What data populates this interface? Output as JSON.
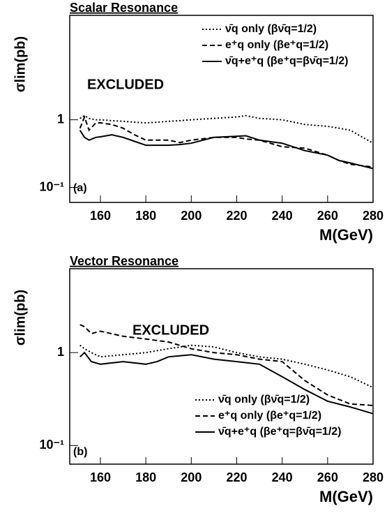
{
  "chart_data": [
    {
      "type": "line",
      "title": "Scalar Resonance",
      "y_label": "σlim(pb)",
      "x_label": "M(GeV)",
      "annotation": "EXCLUDED",
      "panel_label": "(a)",
      "log_y": true,
      "legend_position": "upper right",
      "xlim": [
        146.5,
        280
      ],
      "xticks": [
        160,
        180,
        200,
        220,
        240,
        260,
        280
      ],
      "ylim": [
        0.06,
        35
      ],
      "yticks": [
        {
          "value": 0.1,
          "label": "10⁻¹"
        },
        1
      ],
      "x": [
        151,
        153,
        155,
        158,
        160,
        165,
        170,
        175,
        180,
        185,
        190,
        195,
        200,
        210,
        220,
        224,
        230,
        240,
        250,
        260,
        265,
        270,
        280
      ],
      "series": [
        {
          "name": "ν̄q only (βν̄q=1/2)",
          "color": "#000000",
          "style": "dotted",
          "values": [
            1.05,
            1.15,
            1.05,
            1.0,
            1.0,
            0.97,
            0.95,
            0.92,
            0.9,
            0.92,
            0.95,
            0.97,
            1.0,
            1.05,
            1.1,
            1.15,
            1.05,
            1.0,
            0.85,
            0.8,
            0.75,
            0.7,
            0.45
          ]
        },
        {
          "name": "e⁺q only (βe⁺q=1/2)",
          "color": "#000000",
          "style": "dashed",
          "values": [
            0.75,
            1.1,
            0.7,
            0.9,
            0.9,
            0.85,
            0.75,
            0.6,
            0.5,
            0.5,
            0.5,
            0.46,
            0.5,
            0.55,
            0.55,
            0.52,
            0.5,
            0.4,
            0.38,
            0.3,
            0.25,
            0.22,
            0.2
          ]
        },
        {
          "name": "ν̄q+e⁺q (βe⁺q=βν̄q=1/2)",
          "color": "#000000",
          "style": "solid",
          "values": [
            0.7,
            0.55,
            0.5,
            0.55,
            0.56,
            0.6,
            0.55,
            0.48,
            0.42,
            0.42,
            0.42,
            0.43,
            0.45,
            0.55,
            0.57,
            0.58,
            0.5,
            0.45,
            0.35,
            0.3,
            0.25,
            0.23,
            0.19
          ]
        }
      ]
    },
    {
      "type": "line",
      "title": "Vector Resonance",
      "y_label": "σlim(pb)",
      "x_label": "M(GeV)",
      "annotation": "EXCLUDED",
      "panel_label": "(b)",
      "log_y": true,
      "legend_position": "lower right",
      "xlim": [
        146.5,
        280
      ],
      "xticks": [
        160,
        180,
        200,
        220,
        240,
        260,
        280
      ],
      "ylim": [
        0.063,
        8
      ],
      "yticks": [
        {
          "value": 0.1,
          "label": "10⁻¹"
        },
        1
      ],
      "x": [
        151,
        153,
        156,
        160,
        170,
        180,
        185,
        190,
        200,
        210,
        220,
        230,
        240,
        250,
        260,
        270,
        280
      ],
      "series": [
        {
          "name": "ν̄q only (βν̄q=1/2)",
          "color": "#000000",
          "style": "dotted",
          "values": [
            1.2,
            1.1,
            1.0,
            0.9,
            0.95,
            1.0,
            1.05,
            1.1,
            1.2,
            1.15,
            1.0,
            0.9,
            0.85,
            0.75,
            0.65,
            0.55,
            0.42
          ]
        },
        {
          "name": "e⁺q only (βe⁺q=1/2)",
          "color": "#000000",
          "style": "dashed",
          "values": [
            2.0,
            1.9,
            1.6,
            1.7,
            1.5,
            1.4,
            1.35,
            1.3,
            1.1,
            1.0,
            0.95,
            0.85,
            0.8,
            0.5,
            0.35,
            0.28,
            0.27
          ]
        },
        {
          "name": "ν̄q+e⁺q (βe⁺q=βν̄q=1/2)",
          "color": "#000000",
          "style": "solid",
          "values": [
            0.9,
            1.0,
            0.8,
            0.75,
            0.8,
            0.75,
            0.8,
            0.9,
            0.95,
            0.85,
            0.8,
            0.75,
            0.55,
            0.4,
            0.3,
            0.26,
            0.22
          ]
        }
      ]
    }
  ]
}
